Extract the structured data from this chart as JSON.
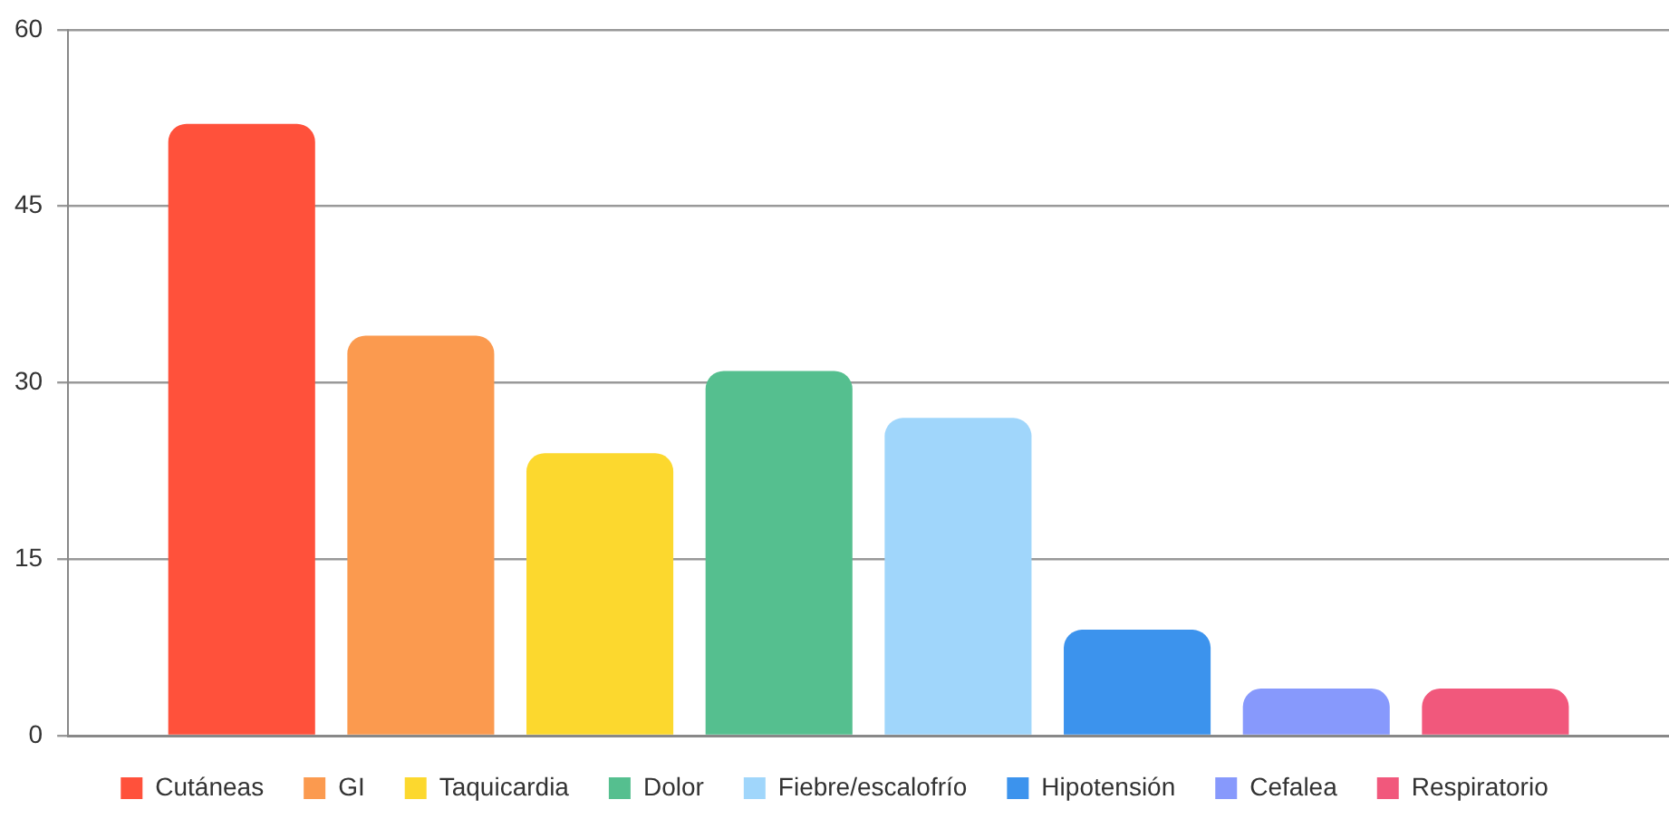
{
  "chart_data": {
    "type": "bar",
    "categories": [
      null
    ],
    "series": [
      {
        "name": "Cutáneas",
        "color": "#ff513b",
        "values": [
          52
        ]
      },
      {
        "name": "GI",
        "color": "#fb9a4f",
        "values": [
          34
        ]
      },
      {
        "name": "Taquicardia",
        "color": "#fcd82e",
        "values": [
          24
        ]
      },
      {
        "name": "Dolor",
        "color": "#55bf8f",
        "values": [
          31
        ]
      },
      {
        "name": "Fiebre/escalofrío",
        "color": "#a0d6fb",
        "values": [
          27
        ]
      },
      {
        "name": "Hipotensión",
        "color": "#3c93ed",
        "values": [
          9
        ]
      },
      {
        "name": "Cefalea",
        "color": "#8799fc",
        "values": [
          4
        ]
      },
      {
        "name": "Respiratorio",
        "color": "#f1587c",
        "values": [
          4
        ]
      }
    ],
    "ylim": [
      0,
      60
    ],
    "yticks": [
      0,
      15,
      30,
      45,
      60
    ],
    "grid": "y",
    "legend": "bottom"
  }
}
